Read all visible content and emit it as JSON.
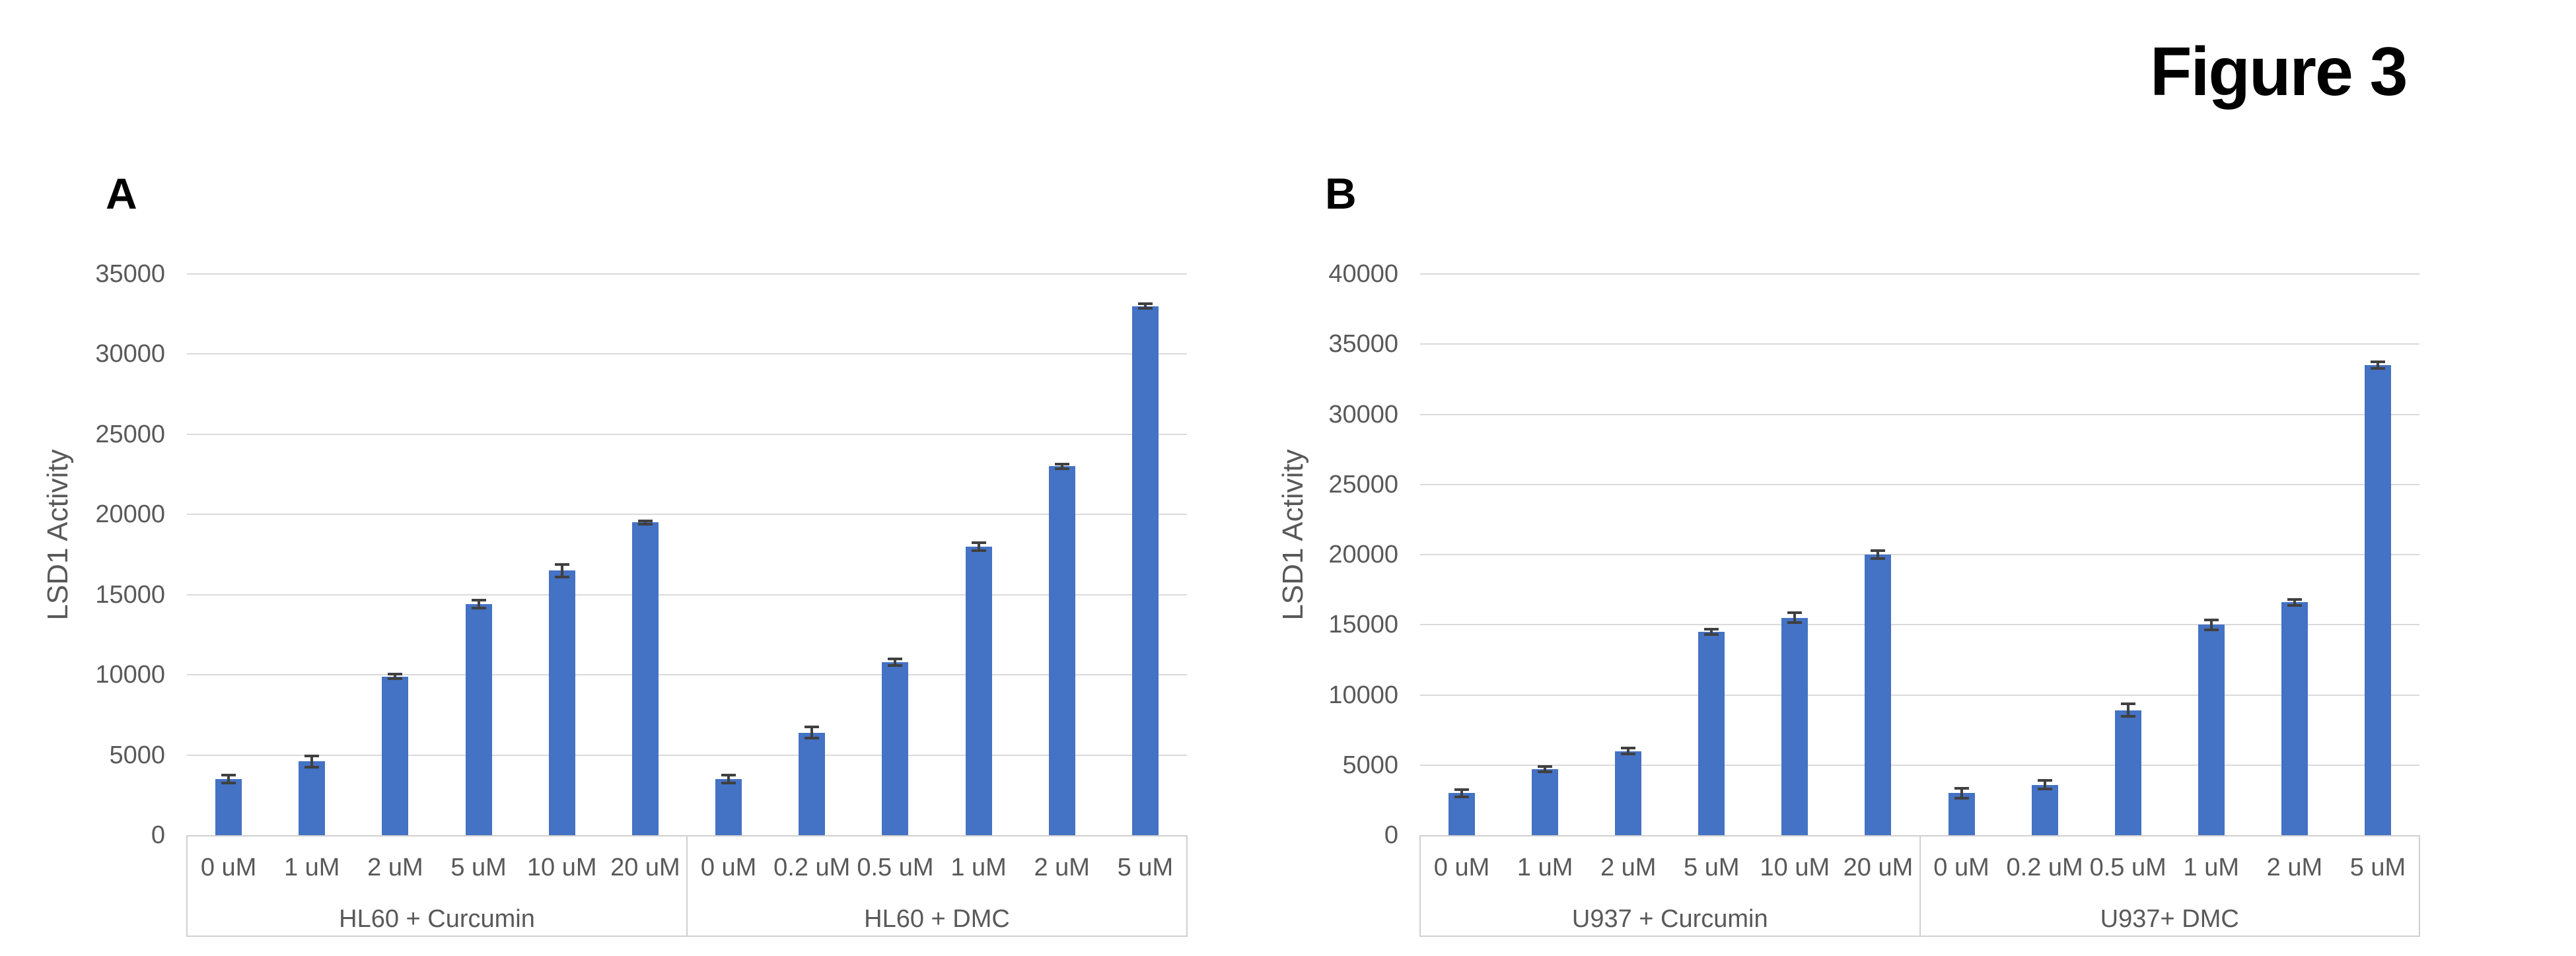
{
  "figure_title": "Figure 3",
  "colors": {
    "bar": "#4472C4",
    "error_bar": "#404040",
    "gridline": "#DADADA",
    "axis_line": "#D0D0D0",
    "axis_text": "#595959",
    "panel_label": "#000000",
    "background": "#FFFFFF"
  },
  "chart_data": [
    {
      "type": "bar",
      "panel_label": "A",
      "ylabel": "LSD1 Activity",
      "ylim": [
        0,
        35000
      ],
      "yticks": [
        0,
        5000,
        10000,
        15000,
        20000,
        25000,
        30000,
        35000
      ],
      "grid": true,
      "legend": "none",
      "groups": [
        {
          "label": "HL60 + Curcumin",
          "categories": [
            "0 uM",
            "1 uM",
            "2 uM",
            "5 uM",
            "10 uM",
            "20 uM"
          ],
          "values": [
            3500,
            4600,
            9900,
            14400,
            16500,
            19500
          ],
          "errors": [
            250,
            350,
            150,
            250,
            400,
            100
          ]
        },
        {
          "label": "HL60 + DMC",
          "categories": [
            "0 uM",
            "0.2 uM",
            "0.5 uM",
            "1 uM",
            "2 uM",
            "5 uM"
          ],
          "values": [
            3500,
            6400,
            10800,
            18000,
            23000,
            33000
          ],
          "errors": [
            250,
            350,
            200,
            250,
            150,
            150
          ]
        }
      ]
    },
    {
      "type": "bar",
      "panel_label": "B",
      "ylabel": "LSD1 Activity",
      "ylim": [
        0,
        40000
      ],
      "yticks": [
        0,
        5000,
        10000,
        15000,
        20000,
        25000,
        30000,
        35000,
        40000
      ],
      "grid": true,
      "legend": "none",
      "groups": [
        {
          "label": "U937 + Curcumin",
          "categories": [
            "0 uM",
            "1 uM",
            "2 uM",
            "5 uM",
            "10 uM",
            "20 uM"
          ],
          "values": [
            3000,
            4700,
            6000,
            14500,
            15500,
            20000
          ],
          "errors": [
            250,
            200,
            200,
            200,
            350,
            300
          ]
        },
        {
          "label": "U937+ DMC",
          "categories": [
            "0 uM",
            "0.2 uM",
            "0.5 uM",
            "1 uM",
            "2 uM",
            "5 uM"
          ],
          "values": [
            3000,
            3600,
            8900,
            15000,
            16600,
            33500
          ],
          "errors": [
            350,
            300,
            450,
            350,
            200,
            250
          ]
        }
      ]
    }
  ]
}
